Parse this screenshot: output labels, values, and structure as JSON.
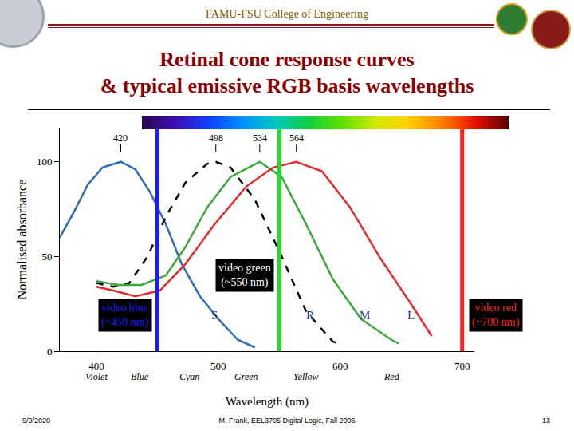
{
  "slide": {
    "header": "FAMU-FSU College of Engineering",
    "footer": {
      "date": "9/9/2020",
      "author": "M. Frank, EEL3705 Digital Logic, Fall 2006",
      "page": 13
    }
  },
  "chart_data": {
    "type": "line",
    "title": [
      "Retinal cone response curves",
      "& typical emissive RGB basis wavelengths"
    ],
    "x_label": "Wavelength (nm)",
    "y_label": "Normalised absorbance",
    "xlim": [
      370,
      710
    ],
    "xticks": [
      400,
      500,
      600,
      700
    ],
    "ylim": [
      0,
      118
    ],
    "yticks": [
      0,
      50,
      100
    ],
    "grid": false,
    "series": [
      {
        "name": "S",
        "color": "#2f6db5",
        "line_style": "solid",
        "x": [
          370,
          382,
          393,
          405,
          420,
          432,
          444,
          457,
          470,
          485,
          500,
          516,
          530
        ],
        "values": [
          60,
          74,
          88,
          97,
          100,
          96,
          84,
          67,
          46,
          29,
          17,
          6,
          2
        ]
      },
      {
        "name": "R",
        "color": "#000000",
        "line_style": "dashed",
        "x": [
          400,
          414,
          427,
          442,
          457,
          473,
          491,
          498,
          510,
          530,
          552,
          572,
          594,
          600
        ],
        "values": [
          36,
          34,
          36,
          50,
          71,
          89,
          99,
          100,
          97,
          80,
          50,
          21,
          5,
          4
        ]
      },
      {
        "name": "M",
        "color": "#3aa83a",
        "line_style": "solid",
        "x": [
          400,
          418,
          437,
          457,
          473,
          491,
          510,
          534,
          552,
          572,
          594,
          617,
          642,
          648
        ],
        "values": [
          37,
          35,
          35,
          40,
          55,
          76,
          92,
          100,
          92,
          67,
          38,
          17,
          6,
          4
        ]
      },
      {
        "name": "L",
        "color": "#e8282d",
        "line_style": "solid",
        "x": [
          400,
          414,
          432,
          452,
          473,
          497,
          523,
          545,
          564,
          585,
          608,
          632,
          658,
          675
        ],
        "values": [
          34,
          32,
          29,
          32,
          46,
          67,
          87,
          97,
          100,
          95,
          76,
          50,
          25,
          8
        ]
      }
    ],
    "peaks": [
      420,
      498,
      534,
      564
    ],
    "annotations": [
      {
        "text": "S",
        "x": 497,
        "y": 19
      },
      {
        "text": "R",
        "x": 575,
        "y": 19
      },
      {
        "text": "M",
        "x": 620,
        "y": 19
      },
      {
        "text": "L",
        "x": 658,
        "y": 19
      }
    ],
    "wavelength_lines": [
      {
        "x": 450,
        "color": "#1a1aff",
        "text": [
          "video blue",
          "(~450 nm)"
        ]
      },
      {
        "x": 550,
        "color": "#22dd22",
        "text": [
          "video green",
          "(~550 nm)"
        ]
      },
      {
        "x": 700,
        "color": "#ff2020",
        "text": [
          "video red",
          "(~700 nm)"
        ]
      }
    ],
    "color_names": [
      {
        "x": 400,
        "text": "Violet"
      },
      {
        "x": 436,
        "text": "Blue"
      },
      {
        "x": 476,
        "text": "Cyan"
      },
      {
        "x": 523,
        "text": "Green"
      },
      {
        "x": 572,
        "text": "Yellow"
      },
      {
        "x": 642,
        "text": "Red"
      }
    ]
  }
}
